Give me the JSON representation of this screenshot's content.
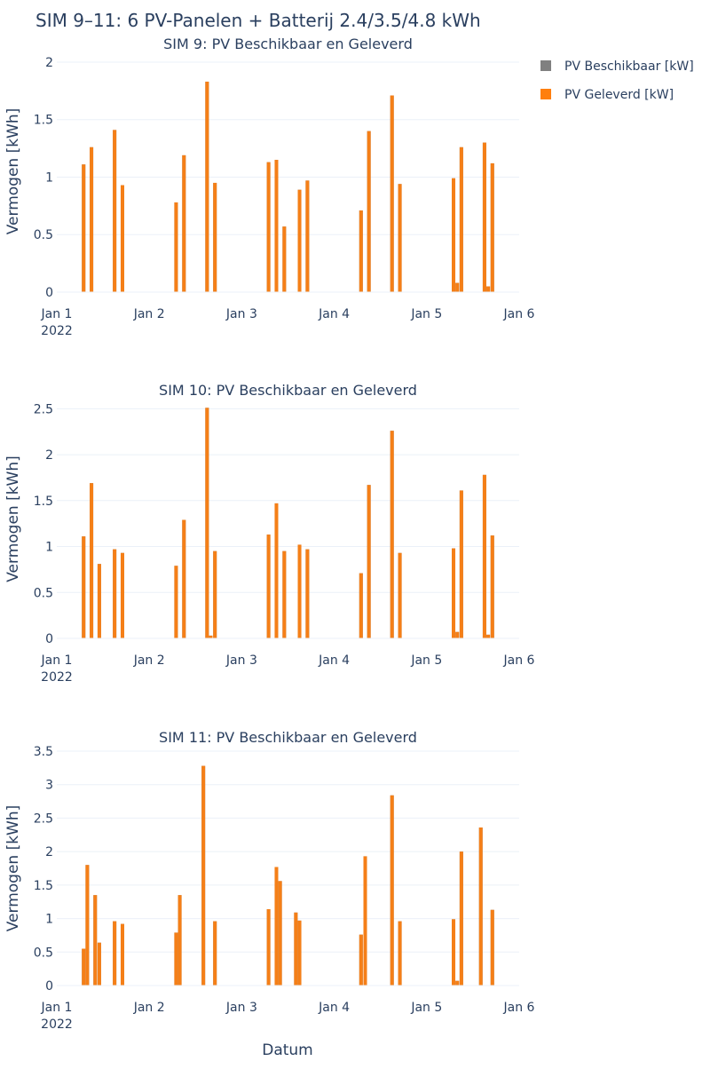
{
  "figure": {
    "title": "SIM 9–11: 6 PV-Panelen + Batterij 2.4/3.5/4.8 kWh",
    "xlabel": "Datum",
    "legend": {
      "position": "top-right",
      "items": [
        {
          "name": "PV Beschikbaar [kW]",
          "color": "#808080"
        },
        {
          "name": "PV Geleverd [kW]",
          "color": "#ff7f0e"
        }
      ]
    }
  },
  "chart_data": [
    {
      "type": "bar",
      "title": "SIM 9: PV Beschikbaar en Geleverd",
      "ylabel": "Vermogen [kWh]",
      "xlabel": "",
      "ylim": [
        0,
        2.1
      ],
      "yticks": [
        0,
        0.5,
        1,
        1.5,
        2
      ],
      "ytick_labels": [
        "0",
        "0.5",
        "1",
        "1.5",
        "2"
      ],
      "xlim": [
        1,
        6
      ],
      "xticks": [
        1,
        2,
        3,
        4,
        5,
        6
      ],
      "xtick_labels": [
        "Jan 1",
        "Jan 2",
        "Jan 3",
        "Jan 4",
        "Jan 5",
        "Jan 6"
      ],
      "xtick_sublabel": "2022",
      "grid": true,
      "series": [
        {
          "name": "PV Beschikbaar [kW]",
          "color": "#808080",
          "x": [
            1.29,
            1.375,
            1.625,
            1.71,
            2.29,
            2.375,
            2.625,
            2.71,
            3.29,
            3.375,
            3.46,
            3.625,
            3.71,
            4.29,
            4.375,
            4.625,
            4.71,
            5.29,
            5.33,
            5.375,
            5.625,
            5.665,
            5.71
          ],
          "values": [
            1.11,
            1.26,
            1.41,
            0.93,
            0.78,
            1.19,
            1.83,
            0.95,
            1.13,
            1.15,
            0.57,
            0.89,
            0.97,
            0.71,
            1.4,
            1.71,
            0.94,
            0.99,
            0.08,
            1.26,
            1.3,
            0.05,
            1.12
          ]
        },
        {
          "name": "PV Geleverd [kW]",
          "color": "#ff7f0e",
          "x": [
            1.29,
            1.375,
            1.625,
            1.71,
            2.29,
            2.375,
            2.625,
            2.71,
            3.29,
            3.375,
            3.46,
            3.625,
            3.71,
            4.29,
            4.375,
            4.625,
            4.71,
            5.29,
            5.33,
            5.375,
            5.625,
            5.665,
            5.71
          ],
          "values": [
            1.11,
            1.26,
            1.41,
            0.93,
            0.78,
            1.19,
            1.83,
            0.95,
            1.13,
            1.15,
            0.57,
            0.89,
            0.97,
            0.71,
            1.4,
            1.71,
            0.94,
            0.99,
            0.08,
            1.26,
            1.3,
            0.05,
            1.12
          ]
        }
      ]
    },
    {
      "type": "bar",
      "title": "SIM 10: PV Beschikbaar en Geleverd",
      "ylabel": "Vermogen [kWh]",
      "xlabel": "",
      "ylim": [
        0,
        2.6
      ],
      "yticks": [
        0,
        0.5,
        1,
        1.5,
        2,
        2.5
      ],
      "ytick_labels": [
        "0",
        "0.5",
        "1",
        "1.5",
        "2",
        "2.5"
      ],
      "xlim": [
        1,
        6
      ],
      "xticks": [
        1,
        2,
        3,
        4,
        5,
        6
      ],
      "xtick_labels": [
        "Jan 1",
        "Jan 2",
        "Jan 3",
        "Jan 4",
        "Jan 5",
        "Jan 6"
      ],
      "xtick_sublabel": "2022",
      "grid": true,
      "series": [
        {
          "name": "PV Beschikbaar [kW]",
          "color": "#808080",
          "x": [
            1.29,
            1.375,
            1.46,
            1.625,
            1.71,
            2.29,
            2.375,
            2.625,
            2.665,
            2.71,
            3.29,
            3.375,
            3.46,
            3.625,
            3.71,
            4.29,
            4.375,
            4.625,
            4.71,
            5.29,
            5.33,
            5.375,
            5.625,
            5.665,
            5.71
          ],
          "values": [
            1.11,
            1.69,
            0.81,
            0.97,
            0.93,
            0.79,
            1.29,
            2.51,
            0.03,
            0.95,
            1.13,
            1.47,
            0.95,
            1.02,
            0.97,
            0.71,
            1.67,
            2.26,
            0.93,
            0.98,
            0.07,
            1.61,
            1.78,
            0.04,
            1.12
          ]
        },
        {
          "name": "PV Geleverd [kW]",
          "color": "#ff7f0e",
          "x": [
            1.29,
            1.375,
            1.46,
            1.625,
            1.71,
            2.29,
            2.375,
            2.625,
            2.665,
            2.71,
            3.29,
            3.375,
            3.46,
            3.625,
            3.71,
            4.29,
            4.375,
            4.625,
            4.71,
            5.29,
            5.33,
            5.375,
            5.625,
            5.665,
            5.71
          ],
          "values": [
            1.11,
            1.69,
            0.81,
            0.97,
            0.93,
            0.79,
            1.29,
            2.51,
            0.03,
            0.95,
            1.13,
            1.47,
            0.95,
            1.02,
            0.97,
            0.71,
            1.67,
            2.26,
            0.93,
            0.98,
            0.07,
            1.61,
            1.78,
            0.04,
            1.12
          ]
        }
      ]
    },
    {
      "type": "bar",
      "title": "SIM 11: PV Beschikbaar en Geleverd",
      "ylabel": "Vermogen [kWh]",
      "xlabel": "Datum",
      "ylim": [
        0,
        3.5
      ],
      "yticks": [
        0,
        0.5,
        1,
        1.5,
        2,
        2.5,
        3,
        3.5
      ],
      "ytick_labels": [
        "0",
        "0.5",
        "1",
        "1.5",
        "2",
        "2.5",
        "3",
        "3.5"
      ],
      "xlim": [
        1,
        6
      ],
      "xticks": [
        1,
        2,
        3,
        4,
        5,
        6
      ],
      "xtick_labels": [
        "Jan 1",
        "Jan 2",
        "Jan 3",
        "Jan 4",
        "Jan 5",
        "Jan 6"
      ],
      "xtick_sublabel": "2022",
      "grid": true,
      "series": [
        {
          "name": "PV Beschikbaar [kW]",
          "color": "#808080",
          "x": [
            1.29,
            1.33,
            1.415,
            1.46,
            1.625,
            1.71,
            2.29,
            2.33,
            2.585,
            2.71,
            3.29,
            3.375,
            3.415,
            3.585,
            3.625,
            4.29,
            4.335,
            4.625,
            4.71,
            5.29,
            5.33,
            5.375,
            5.585,
            5.71
          ],
          "values": [
            0.55,
            1.8,
            1.35,
            0.64,
            0.96,
            0.92,
            0.79,
            1.35,
            3.28,
            0.96,
            1.14,
            1.77,
            1.56,
            1.09,
            0.97,
            0.76,
            1.93,
            2.84,
            0.96,
            0.99,
            0.07,
            2.0,
            2.36,
            1.13
          ]
        },
        {
          "name": "PV Geleverd [kW]",
          "color": "#ff7f0e",
          "x": [
            1.29,
            1.33,
            1.415,
            1.46,
            1.625,
            1.71,
            2.29,
            2.33,
            2.585,
            2.71,
            3.29,
            3.375,
            3.415,
            3.585,
            3.625,
            4.29,
            4.335,
            4.625,
            4.71,
            5.29,
            5.33,
            5.375,
            5.585,
            5.71
          ],
          "values": [
            0.55,
            1.8,
            1.35,
            0.64,
            0.96,
            0.92,
            0.79,
            1.35,
            3.28,
            0.96,
            1.14,
            1.77,
            1.56,
            1.09,
            0.97,
            0.76,
            1.93,
            2.84,
            0.96,
            0.99,
            0.07,
            2.0,
            2.36,
            1.13
          ]
        }
      ]
    }
  ]
}
